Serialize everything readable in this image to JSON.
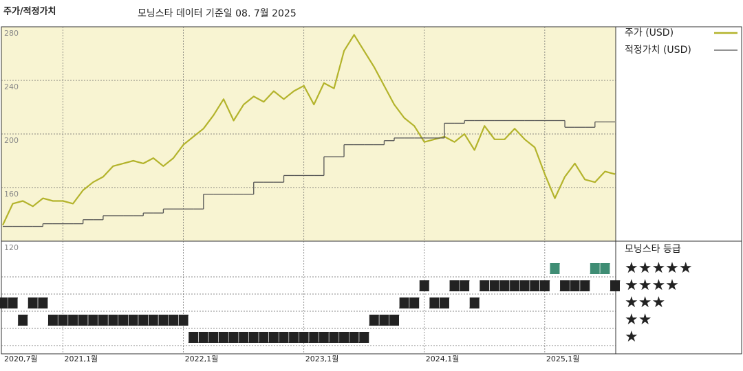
{
  "chart_data": {
    "type": "line",
    "title": "주가/적정가치",
    "subtitle": "모닝스타 데이터 기준일 08. 7월 2025",
    "x": [
      "2020-07",
      "2020-08",
      "2020-09",
      "2020-10",
      "2020-11",
      "2020-12",
      "2021-01",
      "2021-02",
      "2021-03",
      "2021-04",
      "2021-05",
      "2021-06",
      "2021-07",
      "2021-08",
      "2021-09",
      "2021-10",
      "2021-11",
      "2021-12",
      "2022-01",
      "2022-02",
      "2022-03",
      "2022-04",
      "2022-05",
      "2022-06",
      "2022-07",
      "2022-08",
      "2022-09",
      "2022-10",
      "2022-11",
      "2022-12",
      "2023-01",
      "2023-02",
      "2023-03",
      "2023-04",
      "2023-05",
      "2023-06",
      "2023-07",
      "2023-08",
      "2023-09",
      "2023-10",
      "2023-11",
      "2023-12",
      "2024-01",
      "2024-02",
      "2024-03",
      "2024-04",
      "2024-05",
      "2024-06",
      "2024-07",
      "2024-08",
      "2024-09",
      "2024-10",
      "2024-11",
      "2024-12",
      "2025-01",
      "2025-02",
      "2025-03",
      "2025-04",
      "2025-05",
      "2025-06",
      "2025-07",
      "2025-08"
    ],
    "xlim": [
      "2020-07",
      "2025-08"
    ],
    "xticks": [
      {
        "value": "2020-07",
        "label": "2020,7월"
      },
      {
        "value": "2021-01",
        "label": "2021,1월"
      },
      {
        "value": "2022-01",
        "label": "2022,1월"
      },
      {
        "value": "2023-01",
        "label": "2023,1월"
      },
      {
        "value": "2024-01",
        "label": "2024,1월"
      },
      {
        "value": "2025-01",
        "label": "2025,1월"
      }
    ],
    "ylim": [
      120,
      280
    ],
    "yticks": [
      120,
      160,
      200,
      240,
      280
    ],
    "grid": true,
    "series": [
      {
        "name": "주가 (USD)",
        "color": "#b3b32b",
        "values": [
          132,
          148,
          150,
          146,
          152,
          150,
          150,
          148,
          158,
          164,
          168,
          176,
          178,
          180,
          178,
          182,
          176,
          182,
          192,
          198,
          204,
          214,
          226,
          210,
          222,
          228,
          224,
          232,
          226,
          232,
          236,
          222,
          238,
          234,
          262,
          274,
          262,
          250,
          236,
          222,
          212,
          206,
          194,
          196,
          198,
          194,
          200,
          188,
          206,
          196,
          196,
          204,
          196,
          190,
          170,
          152,
          168,
          178,
          166,
          164,
          172,
          170
        ]
      },
      {
        "name": "적정가치 (USD)",
        "color": "#555555",
        "step": true,
        "values": [
          131,
          131,
          131,
          131,
          133,
          133,
          133,
          133,
          136,
          136,
          139,
          139,
          139,
          139,
          141,
          141,
          144,
          144,
          144,
          144,
          155,
          155,
          155,
          155,
          155,
          164,
          164,
          164,
          169,
          169,
          169,
          169,
          183,
          183,
          192,
          192,
          192,
          192,
          195,
          197,
          197,
          197,
          197,
          197,
          208,
          208,
          210,
          210,
          210,
          210,
          210,
          210,
          210,
          210,
          210,
          210,
          205,
          205,
          205,
          209,
          209,
          209
        ]
      }
    ],
    "ratings_title": "모닝스타 등급",
    "rating_axis": [
      {
        "value": 5,
        "label": "★★★★★"
      },
      {
        "value": 4,
        "label": "★★★★"
      },
      {
        "value": 3,
        "label": "★★★"
      },
      {
        "value": 2,
        "label": "★★"
      },
      {
        "value": 1,
        "label": "★"
      }
    ],
    "ratings": [
      3,
      3,
      2,
      3,
      3,
      2,
      2,
      2,
      2,
      2,
      2,
      2,
      2,
      2,
      2,
      2,
      2,
      2,
      2,
      1,
      1,
      1,
      1,
      1,
      1,
      1,
      1,
      1,
      1,
      1,
      1,
      1,
      1,
      1,
      1,
      1,
      1,
      2,
      2,
      2,
      3,
      3,
      4,
      3,
      3,
      4,
      4,
      3,
      4,
      4,
      4,
      4,
      4,
      4,
      4,
      5,
      4,
      4,
      4,
      5,
      5,
      4
    ],
    "rating_colors": [
      "#222222",
      "#222222",
      "#222222",
      "#222222",
      "#3f8d74"
    ]
  }
}
